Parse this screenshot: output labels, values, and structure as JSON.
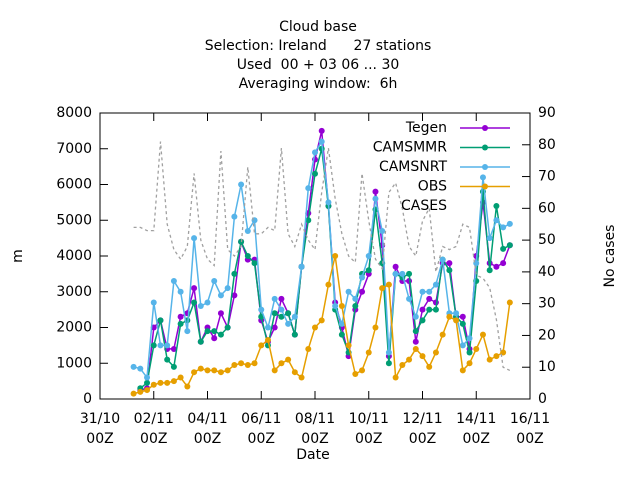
{
  "chart_data": {
    "type": "line",
    "title": [
      "Cloud base",
      "Selection: Ireland      27 stations",
      "Used  00 + 03 06 ... 30",
      "Averaging window:  6h"
    ],
    "x_label": "Date",
    "y_label": "m",
    "y2_label": "No cases",
    "legend": "top-right",
    "x": [
      "01/11 06Z",
      "01/11 12Z",
      "01/11 18Z",
      "02/11 00Z",
      "02/11 06Z",
      "02/11 12Z",
      "02/11 18Z",
      "03/11 00Z",
      "03/11 06Z",
      "03/11 12Z",
      "03/11 18Z",
      "04/11 00Z",
      "04/11 06Z",
      "04/11 12Z",
      "04/11 18Z",
      "05/11 00Z",
      "05/11 06Z",
      "05/11 12Z",
      "05/11 18Z",
      "06/11 00Z",
      "06/11 06Z",
      "06/11 12Z",
      "06/11 18Z",
      "07/11 00Z",
      "07/11 06Z",
      "07/11 12Z",
      "07/11 18Z",
      "08/11 00Z",
      "08/11 06Z",
      "08/11 12Z",
      "08/11 18Z",
      "09/11 00Z",
      "09/11 06Z",
      "09/11 12Z",
      "09/11 18Z",
      "10/11 00Z",
      "10/11 06Z",
      "10/11 12Z",
      "10/11 18Z",
      "11/11 00Z",
      "11/11 06Z",
      "11/11 12Z",
      "11/11 18Z",
      "12/11 00Z",
      "12/11 06Z",
      "12/11 12Z",
      "12/11 18Z",
      "13/11 00Z",
      "13/11 06Z",
      "13/11 12Z",
      "13/11 18Z",
      "14/11 00Z",
      "14/11 06Z",
      "14/11 12Z",
      "14/11 18Z",
      "15/11 00Z",
      "15/11 06Z"
    ],
    "xlim": [
      "31/10 00Z",
      "16/11 00Z"
    ],
    "xticks": [
      "31/10 00Z",
      "02/11 00Z",
      "04/11 00Z",
      "06/11 00Z",
      "08/11 00Z",
      "10/11 00Z",
      "12/11 00Z",
      "14/11 00Z",
      "16/11 00Z"
    ],
    "ylim": [
      0,
      8000
    ],
    "yticks": [
      0,
      1000,
      2000,
      3000,
      4000,
      5000,
      6000,
      7000,
      8000
    ],
    "y2lim": [
      0,
      90
    ],
    "y2ticks": [
      0,
      10,
      20,
      30,
      40,
      50,
      60,
      70,
      80,
      90
    ],
    "series": [
      {
        "name": "Tegen",
        "color": "#9400d3",
        "values": [
          null,
          250,
          300,
          2000,
          2200,
          1400,
          1400,
          2300,
          2400,
          3100,
          1600,
          2000,
          1700,
          2400,
          2000,
          2900,
          4400,
          3900,
          3900,
          2200,
          1600,
          2000,
          2800,
          2400,
          1800,
          3700,
          5200,
          6700,
          7500,
          5400,
          2700,
          2000,
          1200,
          2500,
          3000,
          3500,
          5800,
          4300,
          1200,
          3700,
          3300,
          3300,
          1600,
          2500,
          2800,
          2700,
          3800,
          3800,
          2300,
          2300,
          1400,
          4000,
          5500,
          3800,
          3700,
          3800,
          4300
        ]
      },
      {
        "name": "CAMSMMR",
        "color": "#009e73",
        "values": [
          null,
          300,
          450,
          1500,
          2200,
          1100,
          900,
          2100,
          2200,
          2700,
          1600,
          1900,
          1900,
          1800,
          2000,
          3500,
          4400,
          4000,
          3800,
          2300,
          1500,
          2400,
          2300,
          2400,
          1800,
          3700,
          5000,
          6300,
          7000,
          5400,
          2500,
          1800,
          1300,
          2600,
          3500,
          3600,
          5300,
          3800,
          1000,
          3500,
          3400,
          3500,
          1900,
          2200,
          2500,
          2500,
          3900,
          3600,
          2300,
          2100,
          1300,
          3300,
          5800,
          3600,
          5400,
          4200,
          4300
        ]
      },
      {
        "name": "CAMSNRT",
        "color": "#56b4e9",
        "values": [
          900,
          850,
          600,
          2700,
          1500,
          1500,
          3300,
          3000,
          1900,
          4500,
          2600,
          2700,
          3300,
          2900,
          3100,
          5100,
          6000,
          4700,
          5000,
          2500,
          2000,
          2800,
          2500,
          2100,
          2300,
          3700,
          5900,
          6900,
          7200,
          5500,
          2600,
          2100,
          3000,
          2800,
          3400,
          4000,
          5600,
          4700,
          1300,
          3500,
          3500,
          2800,
          2300,
          3000,
          3000,
          3200,
          3900,
          2400,
          2400,
          1500,
          1700,
          3800,
          6200,
          4500,
          5000,
          4800,
          4900
        ]
      },
      {
        "name": "OBS",
        "color": "#e69f00",
        "values": [
          150,
          200,
          250,
          400,
          450,
          450,
          500,
          600,
          350,
          750,
          850,
          800,
          800,
          750,
          800,
          950,
          1000,
          950,
          1000,
          1500,
          1650,
          800,
          1000,
          1100,
          750,
          600,
          1400,
          2000,
          2200,
          3200,
          4000,
          2600,
          1500,
          700,
          800,
          1300,
          2000,
          3100,
          3200,
          600,
          950,
          1100,
          1400,
          1200,
          900,
          1300,
          1800,
          2300,
          2200,
          800,
          1000,
          1400,
          1800,
          1100,
          1200,
          1300,
          2700
        ]
      },
      {
        "name": "CASES",
        "color": "#a0a0a0",
        "axis": "y2",
        "values": [
          54,
          54,
          53,
          53,
          81,
          55,
          47,
          44,
          48,
          71,
          50,
          44,
          42,
          78,
          47,
          45,
          48,
          73,
          52,
          52,
          54,
          53,
          79,
          52,
          48,
          55,
          50,
          47,
          65,
          79,
          63,
          52,
          45,
          43,
          71,
          56,
          44,
          41,
          65,
          68,
          60,
          48,
          45,
          56,
          60,
          40,
          48,
          47,
          48,
          55,
          54,
          39,
          38,
          35,
          25,
          10,
          9
        ]
      }
    ]
  }
}
